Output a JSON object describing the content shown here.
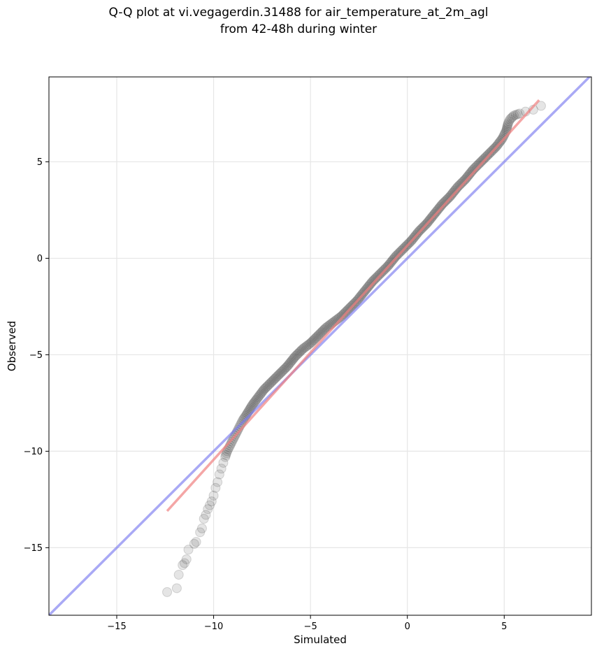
{
  "chart_data": {
    "type": "scatter",
    "title": "Q-Q plot at vi.vegagerdin.31488 for air_temperature_at_2m_agl",
    "subtitle": "from 42-48h during winter",
    "xlabel": "Simulated",
    "ylabel": "Observed",
    "xlim": [
      -18.5,
      9.5
    ],
    "ylim": [
      -18.5,
      9.4
    ],
    "xticks": [
      -15,
      -10,
      -5,
      0,
      5
    ],
    "yticks": [
      -15,
      -10,
      -5,
      0,
      5
    ],
    "xtick_labels": [
      "−15",
      "−10",
      "−5",
      "0",
      "5"
    ],
    "ytick_labels": [
      "−15",
      "−10",
      "−5",
      "0",
      "5"
    ],
    "grid": true,
    "colors": {
      "points": "#333333",
      "fit_line": "#f08080",
      "identity_line": "#7b7bf0"
    },
    "identity_line": {
      "x": [
        -18.5,
        9.5
      ],
      "y": [
        -18.5,
        9.5
      ]
    },
    "fit_line": {
      "x": [
        -12.4,
        6.8
      ],
      "y": [
        -13.1,
        8.2
      ]
    },
    "points": {
      "x": [
        -12.4,
        -11.9,
        -11.8,
        -11.6,
        -11.5,
        -11.4,
        -11.3,
        -11.0,
        -10.9,
        -10.7,
        -10.6,
        -10.5,
        -10.4,
        -10.3,
        -10.2,
        -10.1,
        -10.0,
        -9.9,
        -9.8,
        -9.7,
        -9.6,
        -9.5,
        -9.4,
        -9.3,
        -9.2,
        -9.1,
        -9.0,
        -8.9,
        -8.8,
        -8.7,
        -8.6,
        -8.5,
        -8.3,
        -8.0,
        -7.7,
        -7.4,
        -7.0,
        -6.6,
        -6.2,
        -5.8,
        -5.4,
        -5.0,
        -4.6,
        -4.2,
        -3.8,
        -3.4,
        -3.0,
        -2.6,
        -2.2,
        -1.8,
        -1.4,
        -1.0,
        -0.6,
        -0.2,
        0.2,
        0.6,
        1.0,
        1.4,
        1.8,
        2.2,
        2.6,
        3.0,
        3.4,
        3.8,
        4.2,
        4.6,
        4.9,
        5.1,
        5.2,
        5.3,
        5.5,
        5.8,
        6.1,
        6.5,
        6.9
      ],
      "y": [
        -17.3,
        -17.1,
        -16.4,
        -15.9,
        -15.8,
        -15.6,
        -15.1,
        -14.8,
        -14.7,
        -14.2,
        -14.0,
        -13.5,
        -13.3,
        -13.0,
        -12.8,
        -12.6,
        -12.3,
        -11.9,
        -11.6,
        -11.2,
        -10.9,
        -10.6,
        -10.3,
        -10.0,
        -9.8,
        -9.6,
        -9.4,
        -9.2,
        -9.0,
        -8.8,
        -8.6,
        -8.4,
        -8.1,
        -7.6,
        -7.2,
        -6.8,
        -6.4,
        -6.0,
        -5.6,
        -5.1,
        -4.7,
        -4.4,
        -4.0,
        -3.6,
        -3.3,
        -3.0,
        -2.6,
        -2.2,
        -1.7,
        -1.2,
        -0.8,
        -0.4,
        0.1,
        0.5,
        0.9,
        1.4,
        1.8,
        2.3,
        2.8,
        3.2,
        3.7,
        4.1,
        4.6,
        5.0,
        5.4,
        5.8,
        6.2,
        6.6,
        7.0,
        7.2,
        7.4,
        7.5,
        7.6,
        7.7,
        7.9
      ]
    }
  }
}
